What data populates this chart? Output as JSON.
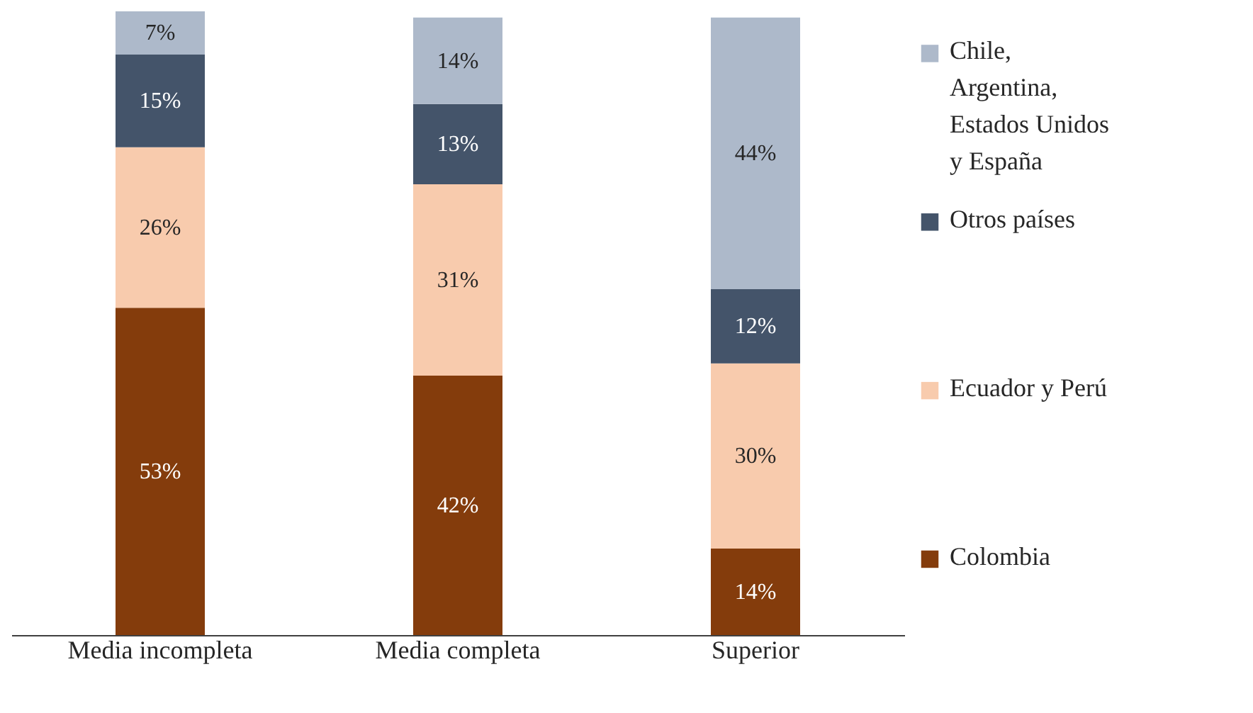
{
  "chart_data": {
    "type": "bar",
    "stacked": true,
    "grid": false,
    "legend": "right",
    "tick_labels": "x",
    "categories": [
      "Media incompleta",
      "Media completa",
      "Superior"
    ],
    "series": [
      {
        "name": "Colombia",
        "color": "#843c0c",
        "values": [
          53,
          42,
          14
        ],
        "value_labels": [
          "53%",
          "42%",
          "14%"
        ]
      },
      {
        "name": "Ecuador y Perú",
        "color": "#f8cbad",
        "values": [
          26,
          31,
          30
        ],
        "value_labels": [
          "26%",
          "31%",
          "30%"
        ]
      },
      {
        "name": "Otros países",
        "color": "#44546a",
        "values": [
          15,
          13,
          12
        ],
        "value_labels": [
          "15%",
          "13%",
          "12%"
        ]
      },
      {
        "name": "Chile, Argentina, Estados Unidos y España",
        "color": "#adb9ca",
        "values": [
          7,
          14,
          44
        ],
        "value_labels": [
          "7%",
          "14%",
          "44%"
        ]
      }
    ]
  }
}
